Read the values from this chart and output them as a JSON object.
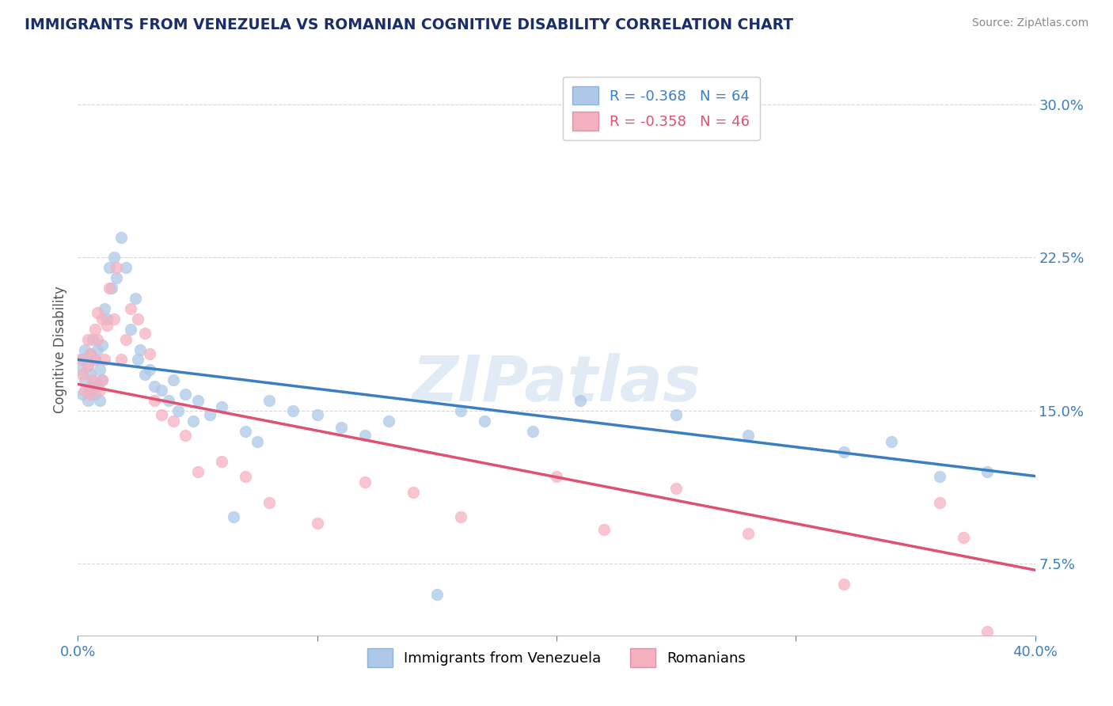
{
  "title": "IMMIGRANTS FROM VENEZUELA VS ROMANIAN COGNITIVE DISABILITY CORRELATION CHART",
  "source": "Source: ZipAtlas.com",
  "ylabel": "Cognitive Disability",
  "xlim": [
    0.0,
    0.4
  ],
  "ylim": [
    0.04,
    0.32
  ],
  "yticks": [
    0.075,
    0.15,
    0.225,
    0.3
  ],
  "ytick_labels": [
    "7.5%",
    "15.0%",
    "22.5%",
    "30.0%"
  ],
  "xticks": [
    0.0,
    0.1,
    0.2,
    0.3,
    0.4
  ],
  "xtick_labels": [
    "0.0%",
    "",
    "",
    "",
    "40.0%"
  ],
  "legend1_label": "R = -0.368   N = 64",
  "legend2_label": "R = -0.358   N = 46",
  "series1_color": "#adc8e8",
  "series2_color": "#f5b0c0",
  "line1_color": "#3a7fc1",
  "line2_color": "#e05070",
  "watermark": "ZIPatlas",
  "background_color": "#ffffff",
  "grid_color": "#cccccc",
  "title_color": "#1a2e6e",
  "axis_label_color": "#555555",
  "tick_color": "#3a7fc1",
  "legend_label1": "Immigrants from Venezuela",
  "legend_label2": "Romanians",
  "line1_x0": 0.0,
  "line1_y0": 0.175,
  "line1_x1": 0.4,
  "line1_y1": 0.118,
  "line2_x0": 0.0,
  "line2_y0": 0.163,
  "line2_x1": 0.4,
  "line2_y1": 0.072,
  "series1_x": [
    0.001,
    0.002,
    0.002,
    0.003,
    0.003,
    0.004,
    0.004,
    0.005,
    0.005,
    0.005,
    0.006,
    0.006,
    0.007,
    0.007,
    0.008,
    0.008,
    0.009,
    0.009,
    0.01,
    0.01,
    0.011,
    0.012,
    0.013,
    0.014,
    0.015,
    0.016,
    0.018,
    0.02,
    0.022,
    0.024,
    0.025,
    0.026,
    0.028,
    0.03,
    0.032,
    0.035,
    0.038,
    0.04,
    0.042,
    0.045,
    0.048,
    0.05,
    0.055,
    0.06,
    0.065,
    0.07,
    0.075,
    0.08,
    0.09,
    0.1,
    0.11,
    0.12,
    0.13,
    0.15,
    0.16,
    0.17,
    0.19,
    0.21,
    0.25,
    0.28,
    0.32,
    0.34,
    0.36,
    0.38
  ],
  "series1_y": [
    0.17,
    0.158,
    0.175,
    0.165,
    0.18,
    0.155,
    0.172,
    0.16,
    0.178,
    0.168,
    0.162,
    0.185,
    0.158,
    0.175,
    0.163,
    0.18,
    0.155,
    0.17,
    0.165,
    0.182,
    0.2,
    0.195,
    0.22,
    0.21,
    0.225,
    0.215,
    0.235,
    0.22,
    0.19,
    0.205,
    0.175,
    0.18,
    0.168,
    0.17,
    0.162,
    0.16,
    0.155,
    0.165,
    0.15,
    0.158,
    0.145,
    0.155,
    0.148,
    0.152,
    0.098,
    0.14,
    0.135,
    0.155,
    0.15,
    0.148,
    0.142,
    0.138,
    0.145,
    0.06,
    0.15,
    0.145,
    0.14,
    0.155,
    0.148,
    0.138,
    0.13,
    0.135,
    0.118,
    0.12
  ],
  "series2_x": [
    0.001,
    0.002,
    0.003,
    0.004,
    0.004,
    0.005,
    0.005,
    0.006,
    0.007,
    0.007,
    0.008,
    0.008,
    0.009,
    0.01,
    0.01,
    0.011,
    0.012,
    0.013,
    0.015,
    0.016,
    0.018,
    0.02,
    0.022,
    0.025,
    0.028,
    0.03,
    0.032,
    0.035,
    0.04,
    0.045,
    0.05,
    0.06,
    0.07,
    0.08,
    0.1,
    0.12,
    0.14,
    0.16,
    0.2,
    0.22,
    0.25,
    0.28,
    0.32,
    0.36,
    0.37,
    0.38
  ],
  "series2_y": [
    0.175,
    0.168,
    0.16,
    0.172,
    0.185,
    0.158,
    0.178,
    0.165,
    0.175,
    0.19,
    0.185,
    0.198,
    0.16,
    0.165,
    0.195,
    0.175,
    0.192,
    0.21,
    0.195,
    0.22,
    0.175,
    0.185,
    0.2,
    0.195,
    0.188,
    0.178,
    0.155,
    0.148,
    0.145,
    0.138,
    0.12,
    0.125,
    0.118,
    0.105,
    0.095,
    0.115,
    0.11,
    0.098,
    0.118,
    0.092,
    0.112,
    0.09,
    0.065,
    0.105,
    0.088,
    0.042
  ]
}
